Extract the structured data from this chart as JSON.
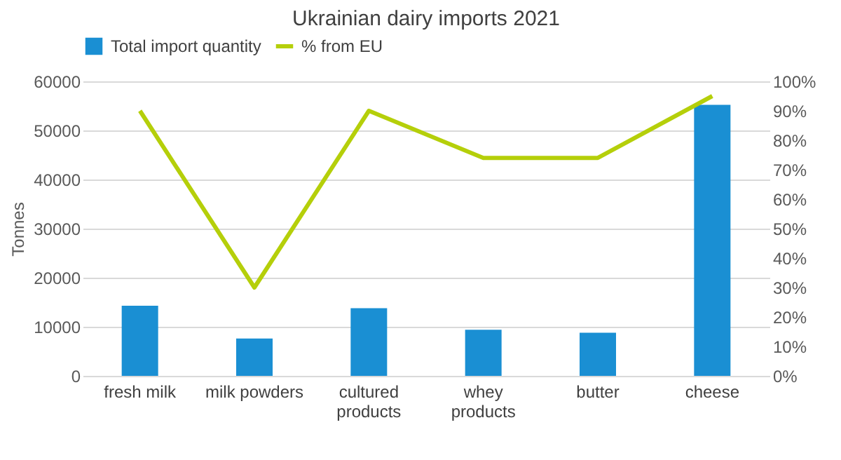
{
  "chart_data": {
    "type": "bar",
    "title": "Ukrainian dairy imports 2021",
    "ylabel": "Tonnes",
    "categories": [
      "fresh milk",
      "milk powders",
      "cultured products",
      "whey products",
      "butter",
      "cheese"
    ],
    "series": [
      {
        "name": "Total import quantity",
        "color": "#1a8fd3",
        "values": [
          14300,
          7600,
          13800,
          9400,
          8800,
          55200
        ]
      },
      {
        "name": "% from EU",
        "type": "line",
        "axis": "y2",
        "color": "#b5cf0a",
        "values": [
          90,
          30,
          90,
          74,
          74,
          95
        ]
      }
    ],
    "ylim": [
      0,
      60000
    ],
    "yticks": [
      0,
      10000,
      20000,
      30000,
      40000,
      50000,
      60000
    ],
    "y2lim": [
      0,
      100
    ],
    "y2ticks": [
      {
        "value": 0,
        "label": "0%"
      },
      {
        "value": 10,
        "label": "10%"
      },
      {
        "value": 20,
        "label": "20%"
      },
      {
        "value": 30,
        "label": "30%"
      },
      {
        "value": 40,
        "label": "40%"
      },
      {
        "value": 50,
        "label": "50%"
      },
      {
        "value": 60,
        "label": "60%"
      },
      {
        "value": 70,
        "label": "70%"
      },
      {
        "value": 80,
        "label": "80%"
      },
      {
        "value": 90,
        "label": "90%"
      },
      {
        "value": 100,
        "label": "100%"
      }
    ],
    "grid": "y",
    "legend": "top",
    "marker": "none",
    "line_style": "solid"
  }
}
